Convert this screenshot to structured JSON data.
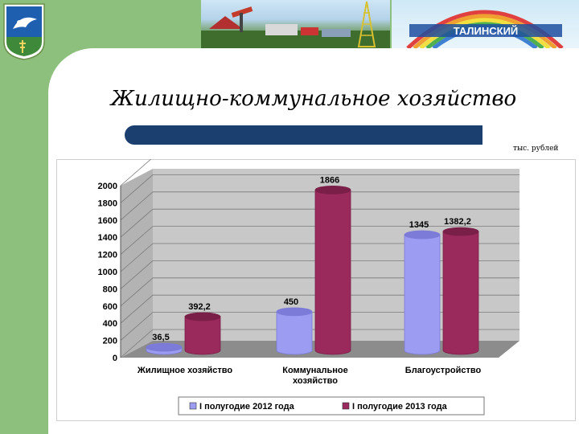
{
  "header": {
    "banner_text": "ТАЛИНСКИЙ"
  },
  "slide": {
    "title": "Жилищно-коммунальное хозяйство",
    "units": "тыс. рублей"
  },
  "colors": {
    "series1": "#9c9cf2",
    "series2": "#9a2a5c",
    "title_bar": "#1b3f6e",
    "side_band": "#8dc07c"
  },
  "chart_data": {
    "type": "bar",
    "style": "3d-cylinder",
    "categories": [
      "Жилищное  хозяйство",
      "Коммунальное хозяйство",
      "Благоустройство"
    ],
    "category_lines": [
      [
        "Жилищное  хозяйство"
      ],
      [
        "Коммунальное",
        "хозяйство"
      ],
      [
        "Благоустройство"
      ]
    ],
    "series": [
      {
        "name": "I полугодие 2012 года",
        "values": [
          36.5,
          450,
          1345
        ],
        "labels": [
          "36,5",
          "450",
          "1345"
        ]
      },
      {
        "name": "I полугодие 2013 года",
        "values": [
          392.2,
          1866,
          1382.2
        ],
        "labels": [
          "392,2",
          "1866",
          "1382,2"
        ]
      }
    ],
    "ylim": [
      0,
      2000
    ],
    "yticks": [
      0,
      200,
      400,
      600,
      800,
      1000,
      1200,
      1400,
      1600,
      1800,
      2000
    ],
    "grid": true,
    "legend_position": "bottom"
  }
}
